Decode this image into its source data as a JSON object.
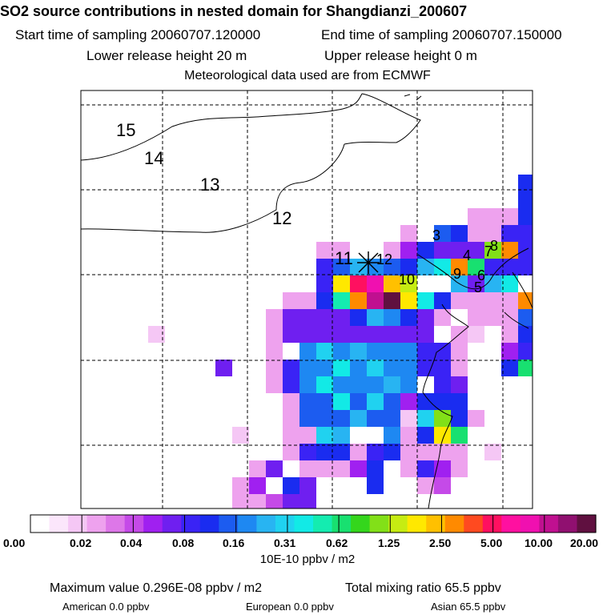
{
  "header": {
    "title": "SO2 source contributions in nested domain for Shangdianzi_200607",
    "start_time": "Start time of sampling 20060707.120000",
    "end_time": "End time of sampling 20060707.150000",
    "lower_height": "Lower release height   20 m",
    "upper_height": "Upper release height    0 m",
    "met_data": "Meteorological data used are from ECMWF"
  },
  "chart_data": {
    "type": "heatmap",
    "title": "SO2 source contributions in nested domain for Shangdianzi_200607",
    "colorbar_label": "10E-10 ppbv / m2",
    "colorbar_ticks": [
      "0.00",
      "0.02",
      "0.04",
      "0.08",
      "0.16",
      "0.31",
      "0.62",
      "1.25",
      "2.50",
      "5.00",
      "10.00",
      "20.00"
    ],
    "colorbar_colors": [
      "#ffffff",
      "#fbe6fb",
      "#f5c7f5",
      "#eea2ee",
      "#dd77e8",
      "#c54ae8",
      "#a020f0",
      "#6f1ff0",
      "#3a23f5",
      "#1a2cf0",
      "#1c5cf0",
      "#1e88f2",
      "#28b4f2",
      "#20d2f0",
      "#12eae6",
      "#14ecb0",
      "#18e070",
      "#34d61c",
      "#82e018",
      "#c6ec12",
      "#ffe800",
      "#ffc000",
      "#ff8a00",
      "#ff4a20",
      "#ff1060",
      "#ff10a0",
      "#f010b0",
      "#c01090",
      "#901070",
      "#601040"
    ],
    "contour_labels": [
      "15",
      "14",
      "13",
      "12",
      "11",
      "12",
      "3",
      "4",
      "5",
      "6",
      "7",
      "8",
      "9",
      "10"
    ],
    "receptor": "Shangdianzi",
    "max_value": "0.296E-08",
    "total_mixing_ratio_ppbv": 65.5,
    "regions": [
      {
        "name": "American",
        "ppbv": 0.0
      },
      {
        "name": "European",
        "ppbv": 0.0
      },
      {
        "name": "Asian",
        "ppbv": 65.5
      }
    ]
  },
  "colorbar": {
    "ticks": [
      "0.00",
      "0.02",
      "0.04",
      "0.08",
      "0.16",
      "0.31",
      "0.62",
      "1.25",
      "2.50",
      "5.00",
      "10.00",
      "20.00"
    ],
    "units": "10E-10 ppbv / m2"
  },
  "footer": {
    "max_label": "Maximum value  0.296E-08 ppbv / m2",
    "total_label": "Total mixing ratio      65.5 ppbv",
    "american": "American          0.0 ppbv",
    "european": "European          0.0 ppbv",
    "asian": "Asian          65.5 ppbv"
  }
}
